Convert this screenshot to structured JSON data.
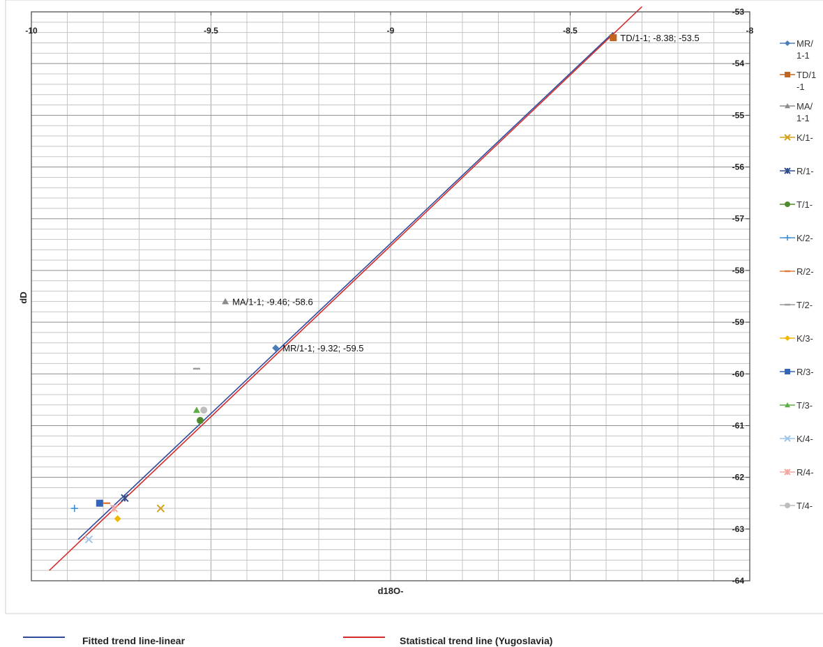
{
  "chart_data": {
    "type": "scatter",
    "xlabel": "d18O-",
    "ylabel": "dD",
    "xlim": [
      -10,
      -8
    ],
    "ylim": [
      -64,
      -53
    ],
    "x_ticks": [
      "-10",
      "-9.5",
      "-9",
      "-8.5",
      "-8"
    ],
    "y_ticks": [
      "-53",
      "-54",
      "-55",
      "-56",
      "-57",
      "-58",
      "-59",
      "-60",
      "-61",
      "-62",
      "-63",
      "-64"
    ],
    "grid": true,
    "legend_position": "right",
    "series": [
      {
        "name": "MR/1-1",
        "legend": [
          "MR/",
          "1-1"
        ],
        "marker": "diamond",
        "color": "#4a7ebb",
        "points": [
          {
            "x": -9.32,
            "y": -59.5,
            "label": "MR/1-1; -9.32; -59.5"
          }
        ]
      },
      {
        "name": "TD/1-1",
        "legend": [
          "TD/1",
          "-1"
        ],
        "marker": "square",
        "color": "#c0651f",
        "points": [
          {
            "x": -8.38,
            "y": -53.5,
            "label": "TD/1-1; -8.38; -53.5"
          }
        ]
      },
      {
        "name": "MA/1-1",
        "legend": [
          "MA/",
          "1-1"
        ],
        "marker": "triangle",
        "color": "#8c8c8c",
        "points": [
          {
            "x": -9.46,
            "y": -58.6,
            "label": "MA/1-1; -9.46; -58.6"
          }
        ]
      },
      {
        "name": "K/1-",
        "legend": [
          "K/1-"
        ],
        "marker": "x",
        "color": "#d4a017",
        "points": [
          {
            "x": -9.64,
            "y": -62.6
          }
        ]
      },
      {
        "name": "R/1-",
        "legend": [
          "R/1-"
        ],
        "marker": "star",
        "color": "#2f4f8f",
        "points": [
          {
            "x": -9.74,
            "y": -62.4
          }
        ]
      },
      {
        "name": "T/1-",
        "legend": [
          "T/1-"
        ],
        "marker": "circle",
        "color": "#4f8a2c",
        "points": [
          {
            "x": -9.53,
            "y": -60.9
          }
        ]
      },
      {
        "name": "K/2-",
        "legend": [
          "K/2-"
        ],
        "marker": "plus",
        "color": "#3f8fd6",
        "points": [
          {
            "x": -9.88,
            "y": -62.6
          }
        ]
      },
      {
        "name": "R/2-",
        "legend": [
          "R/2-"
        ],
        "marker": "dash",
        "color": "#e07b39",
        "points": [
          {
            "x": -9.79,
            "y": -62.5
          }
        ]
      },
      {
        "name": "T/2-",
        "legend": [
          "T/2-"
        ],
        "marker": "dash",
        "color": "#9a9a9a",
        "points": [
          {
            "x": -9.54,
            "y": -59.9
          }
        ]
      },
      {
        "name": "K/3-",
        "legend": [
          "K/3-"
        ],
        "marker": "diamond",
        "color": "#f2b705",
        "points": [
          {
            "x": -9.76,
            "y": -62.8
          }
        ]
      },
      {
        "name": "R/3-",
        "legend": [
          "R/3-"
        ],
        "marker": "square",
        "color": "#3565b8",
        "points": [
          {
            "x": -9.81,
            "y": -62.5
          }
        ]
      },
      {
        "name": "T/3-",
        "legend": [
          "T/3-"
        ],
        "marker": "triangle",
        "color": "#5fae45",
        "points": [
          {
            "x": -9.54,
            "y": -60.7
          }
        ]
      },
      {
        "name": "K/4-",
        "legend": [
          "K/4-"
        ],
        "marker": "x",
        "color": "#9fc5e8",
        "points": [
          {
            "x": -9.84,
            "y": -63.2
          }
        ]
      },
      {
        "name": "R/4-",
        "legend": [
          "R/4-"
        ],
        "marker": "star",
        "color": "#f4a7a0",
        "points": [
          {
            "x": -9.77,
            "y": -62.6
          }
        ]
      },
      {
        "name": "T/4-",
        "legend": [
          "T/4-"
        ],
        "marker": "circle",
        "color": "#bdbdbd",
        "points": [
          {
            "x": -9.52,
            "y": -60.7
          }
        ]
      }
    ],
    "trend_lines": [
      {
        "name": "Fitted trend line-linear",
        "color": "#2e4a9c",
        "points": [
          [
            -9.87,
            -63.2
          ],
          [
            -8.38,
            -53.4
          ]
        ]
      },
      {
        "name": "Statistical trend line (Yugoslavia)",
        "color": "#d42a2a",
        "points": [
          [
            -9.95,
            -63.8
          ],
          [
            -8.3,
            -52.9
          ]
        ]
      }
    ]
  }
}
